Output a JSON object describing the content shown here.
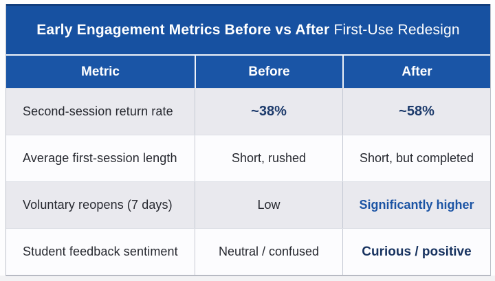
{
  "table": {
    "title": {
      "bold_part": "Early Engagement Metrics Before vs After",
      "regular_part": " First-Use Redesign"
    },
    "columns": {
      "metric": "Metric",
      "before": "Before",
      "after": "After"
    },
    "rows": [
      {
        "metric": "Second-session return rate",
        "before": "~38%",
        "after": "~58%"
      },
      {
        "metric": "Average first-session length",
        "before": "Short, rushed",
        "after": "Short, but completed"
      },
      {
        "metric": "Voluntary reopens (7 days)",
        "before": "Low",
        "after": "Significantly higher"
      },
      {
        "metric": "Student feedback sentiment",
        "before": "Neutral / confused",
        "after": "Curious / positive"
      }
    ]
  },
  "colors": {
    "header_blue": "#1a55a6",
    "title_blue": "#1751a1",
    "title_top_border": "#123e7e",
    "row_gray": "#e9e9ee",
    "row_white": "#fcfcfe",
    "body_text": "#26282f",
    "value_navy": "#1c3a6b",
    "value_blue_bold": "#1b54a4",
    "value_navy_bold": "#17325f",
    "divider_gray": "#c5c9d3",
    "outer_border": "#bcc0c9"
  }
}
